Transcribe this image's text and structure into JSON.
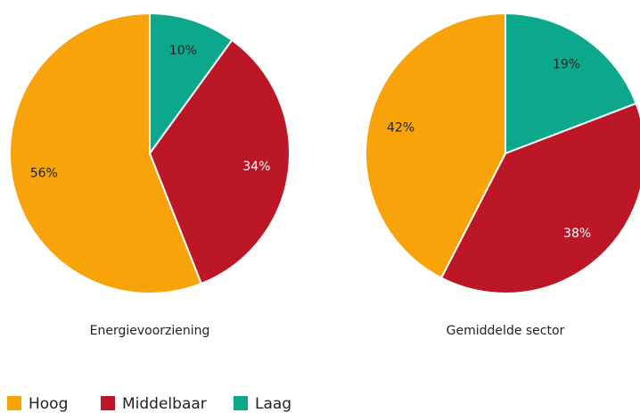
{
  "chart_data": [
    {
      "type": "pie",
      "title": "Energievoorziening",
      "values": [
        56,
        34,
        10
      ],
      "value_labels": [
        "56%",
        "34%",
        "10%"
      ]
    },
    {
      "type": "pie",
      "title": "Gemiddelde sector",
      "values": [
        42,
        38,
        19
      ],
      "value_labels": [
        "42%",
        "38%",
        "19%"
      ]
    }
  ],
  "legend": {
    "labels": [
      "Hoog",
      "Middelbaar",
      "Laag"
    ],
    "colors": [
      "#f9a30b",
      "#bb1727",
      "#0ba88b"
    ],
    "label_colors": [
      "#222",
      "#fff",
      "#222"
    ]
  }
}
